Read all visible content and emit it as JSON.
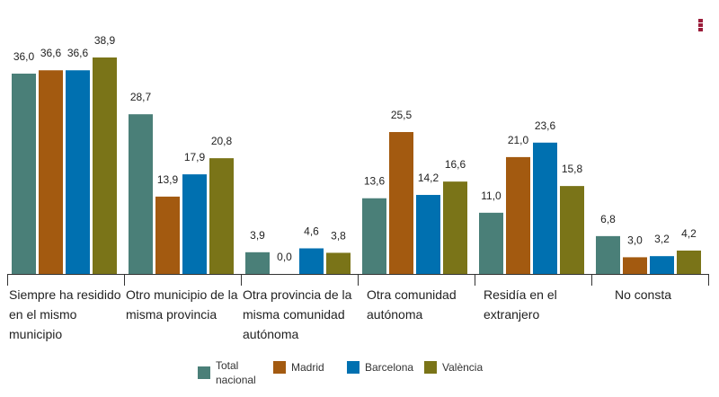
{
  "chart_data": {
    "type": "bar",
    "categories": [
      "Siempre ha residido en el mismo municipio",
      "Otro municipio de la misma provincia",
      "Otra provincia de la misma comunidad autónoma",
      "Otra comunidad autónoma",
      "Residía en el extranjero",
      "No consta"
    ],
    "series": [
      {
        "name": "Total nacional",
        "color": "#4a7f78",
        "values": [
          36.0,
          28.7,
          3.9,
          13.6,
          11.0,
          6.8
        ]
      },
      {
        "name": "Madrid",
        "color": "#a35a10",
        "values": [
          36.6,
          13.9,
          0.0,
          25.5,
          21.0,
          3.0
        ]
      },
      {
        "name": "Barcelona",
        "color": "#0070b0",
        "values": [
          36.6,
          17.9,
          4.6,
          14.2,
          23.6,
          3.2
        ]
      },
      {
        "name": "València",
        "color": "#7a7418",
        "values": [
          38.9,
          20.8,
          3.8,
          16.6,
          15.8,
          4.2
        ]
      }
    ],
    "ylim": [
      0,
      39
    ],
    "grid": false,
    "legend": "bottom"
  },
  "menu_icon": "kebab-menu-icon"
}
